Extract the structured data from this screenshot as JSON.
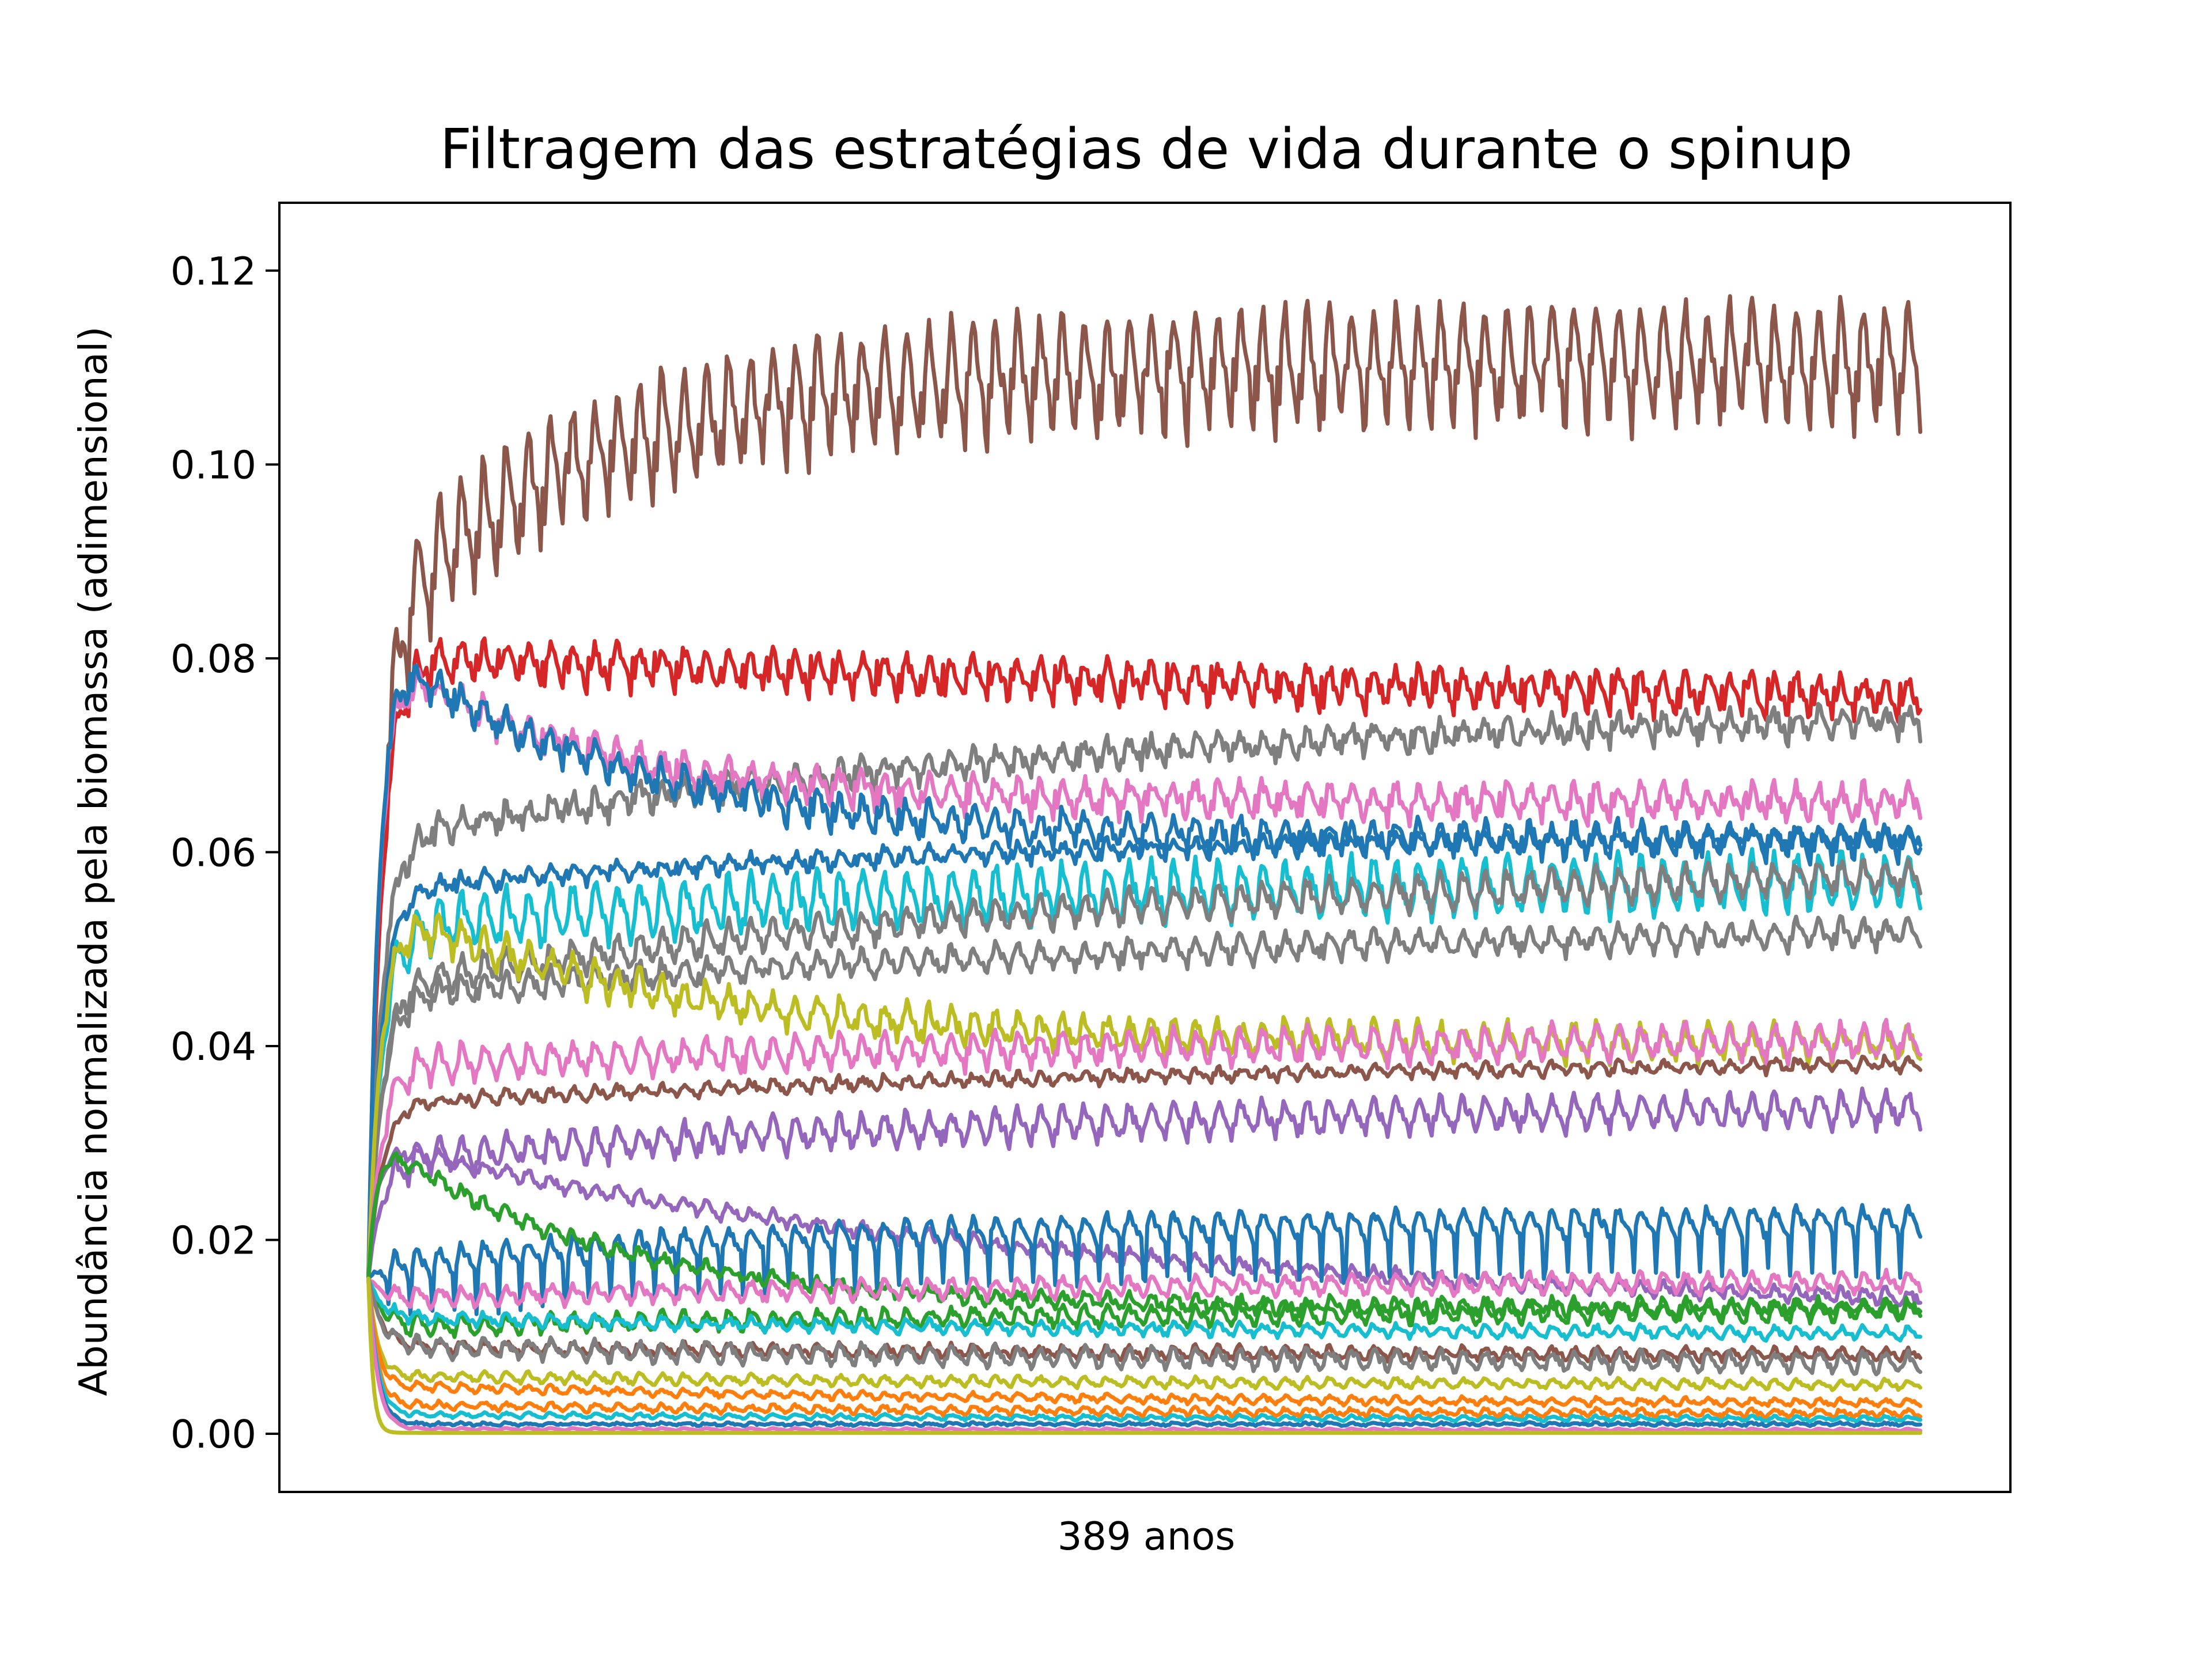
{
  "chart_data": {
    "type": "line",
    "title": "Filtragem das estratégias de vida durante o spinup",
    "xlabel": "389 anos",
    "ylabel": "Abundância normalizada pela biomassa (adimensional)",
    "xlim": [
      0,
      389
    ],
    "ylim": [
      -0.006,
      0.127
    ],
    "y_ticks": [
      0.0,
      0.02,
      0.04,
      0.06,
      0.08,
      0.1,
      0.12
    ],
    "y_tick_labels": [
      "0.00",
      "0.02",
      "0.04",
      "0.06",
      "0.08",
      "0.10",
      "0.12"
    ],
    "x_ticks_shown": false,
    "grid": false,
    "legend": "none",
    "x_data_range": [
      20,
      369
    ],
    "series": [
      {
        "color": "#8c564b",
        "start": 0.016,
        "peak": 0.083,
        "end": 0.11,
        "osc": 0.0055,
        "noise": 0.0012,
        "spike": 0.006,
        "tau_up": 3,
        "tau_decay": 50
      },
      {
        "color": "#d62728",
        "start": 0.016,
        "peak": 0.08,
        "end": 0.074,
        "osc": 0.0018,
        "noise": 0.0008,
        "spike": 0.003,
        "tau_up": 3,
        "tau_decay": 300
      },
      {
        "color": "#7f7f7f",
        "start": 0.016,
        "peak": 0.061,
        "end": 0.075,
        "osc": 0.0012,
        "noise": 0.0008,
        "spike": 0.0015,
        "tau_up": 3,
        "tau_decay": 160
      },
      {
        "color": "#e377c2",
        "start": 0.016,
        "peak": 0.081,
        "end": 0.065,
        "osc": 0.0015,
        "noise": 0.0008,
        "spike": 0.002,
        "tau_up": 2.5,
        "tau_decay": 45
      },
      {
        "color": "#1f77b4",
        "start": 0.016,
        "peak": 0.082,
        "end": 0.061,
        "osc": 0.0015,
        "noise": 0.0008,
        "spike": 0.002,
        "tau_up": 2.5,
        "tau_decay": 55
      },
      {
        "color": "#1f77b4",
        "start": 0.016,
        "peak": 0.056,
        "end": 0.062,
        "osc": 0.0008,
        "noise": 0.0005,
        "spike": 0.001,
        "tau_up": 3,
        "tau_decay": 140
      },
      {
        "color": "#17becf",
        "start": 0.016,
        "peak": 0.052,
        "end": 0.057,
        "osc": 0.0025,
        "noise": 0.0008,
        "spike": 0.001,
        "tau_up": 3,
        "tau_decay": 120
      },
      {
        "color": "#7f7f7f",
        "start": 0.016,
        "peak": 0.046,
        "end": 0.059,
        "osc": 0.0015,
        "noise": 0.0006,
        "spike": 0.001,
        "tau_up": 3,
        "tau_decay": 170
      },
      {
        "color": "#7f7f7f",
        "start": 0.016,
        "peak": 0.045,
        "end": 0.053,
        "osc": 0.0012,
        "noise": 0.0006,
        "spike": 0.001,
        "tau_up": 3,
        "tau_decay": 200
      },
      {
        "color": "#bcbd22",
        "start": 0.016,
        "peak": 0.055,
        "end": 0.04,
        "osc": 0.0015,
        "noise": 0.0008,
        "spike": 0.001,
        "tau_up": 3,
        "tau_decay": 65
      },
      {
        "color": "#e377c2",
        "start": 0.016,
        "peak": 0.038,
        "end": 0.041,
        "osc": 0.0015,
        "noise": 0.0006,
        "spike": 0.001,
        "tau_up": 3,
        "tau_decay": 200
      },
      {
        "color": "#8c564b",
        "start": 0.016,
        "peak": 0.034,
        "end": 0.039,
        "osc": 0.0005,
        "noise": 0.0004,
        "spike": 0.0,
        "tau_up": 3,
        "tau_decay": 200
      },
      {
        "color": "#9467bd",
        "start": 0.016,
        "peak": 0.028,
        "end": 0.034,
        "osc": 0.0015,
        "noise": 0.0006,
        "spike": 0.001,
        "tau_up": 3,
        "tau_decay": 150
      },
      {
        "color": "#9467bd",
        "start": 0.016,
        "peak": 0.03,
        "end": 0.012,
        "osc": 0.0006,
        "noise": 0.0004,
        "spike": 0.0,
        "tau_up": 2,
        "tau_decay": 160
      },
      {
        "color": "#1f77b4",
        "start": 0.016,
        "peak": 0.017,
        "end": 0.022,
        "osc": 0.0012,
        "noise": 0.0005,
        "spike": -0.004,
        "tau_up": 3,
        "tau_decay": 100
      },
      {
        "color": "#2ca02c",
        "start": 0.016,
        "peak": 0.031,
        "end": 0.013,
        "osc": 0.0006,
        "noise": 0.0005,
        "spike": 0.0,
        "tau_up": 2,
        "tau_decay": 50
      },
      {
        "color": "#e377c2",
        "start": 0.016,
        "peak": 0.014,
        "end": 0.016,
        "osc": 0.0008,
        "noise": 0.0004,
        "spike": 0.0,
        "tau_up": 3,
        "tau_decay": 200
      },
      {
        "color": "#2ca02c",
        "start": 0.016,
        "peak": 0.011,
        "end": 0.013,
        "osc": 0.0008,
        "noise": 0.0004,
        "spike": 0.0,
        "tau_up": 3,
        "tau_decay": 200
      },
      {
        "color": "#17becf",
        "start": 0.016,
        "peak": 0.012,
        "end": 0.01,
        "osc": 0.0005,
        "noise": 0.0003,
        "spike": 0.0,
        "tau_up": 3,
        "tau_decay": 200
      },
      {
        "color": "#8c564b",
        "start": 0.016,
        "peak": 0.009,
        "end": 0.008,
        "osc": 0.0005,
        "noise": 0.0003,
        "spike": 0.0,
        "tau_up": 3,
        "tau_decay": 200
      },
      {
        "color": "#7f7f7f",
        "start": 0.016,
        "peak": 0.009,
        "end": 0.007,
        "osc": 0.0008,
        "noise": 0.0004,
        "spike": 0.0,
        "tau_up": 3,
        "tau_decay": 200
      },
      {
        "color": "#bcbd22",
        "start": 0.016,
        "peak": 0.006,
        "end": 0.005,
        "osc": 0.0004,
        "noise": 0.0002,
        "spike": 0.0,
        "tau_up": 2,
        "tau_decay": 150
      },
      {
        "color": "#ff7f0e",
        "start": 0.016,
        "peak": 0.005,
        "end": 0.003,
        "osc": 0.0003,
        "noise": 0.0002,
        "spike": 0.0,
        "tau_up": 2,
        "tau_decay": 150
      },
      {
        "color": "#ff7f0e",
        "start": 0.016,
        "peak": 0.003,
        "end": 0.002,
        "osc": 0.0003,
        "noise": 0.0002,
        "spike": 0.0,
        "tau_up": 2,
        "tau_decay": 150
      },
      {
        "color": "#17becf",
        "start": 0.016,
        "peak": 0.002,
        "end": 0.0015,
        "osc": 0.0002,
        "noise": 0.0001,
        "spike": 0.0,
        "tau_up": 2,
        "tau_decay": 150
      },
      {
        "color": "#1f77b4",
        "start": 0.016,
        "peak": 0.001,
        "end": 0.001,
        "osc": 0.0001,
        "noise": 0.0001,
        "spike": 0.0,
        "tau_up": 2,
        "tau_decay": 150
      },
      {
        "color": "#e377c2",
        "start": 0.016,
        "peak": 0.0005,
        "end": 0.0004,
        "osc": 0.0001,
        "noise": 0.0,
        "spike": 0.0,
        "tau_up": 2,
        "tau_decay": 150
      },
      {
        "color": "#bcbd22",
        "start": 0.016,
        "peak": 0.0001,
        "end": 0.0001,
        "osc": 0.0,
        "noise": 0.0,
        "spike": 0.0,
        "tau_up": 1,
        "tau_decay": 150
      }
    ]
  }
}
